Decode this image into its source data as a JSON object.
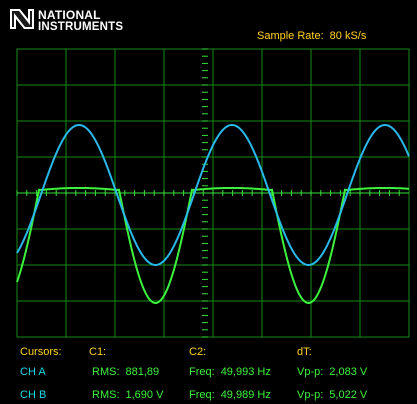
{
  "brand": {
    "line1": "NATIONAL",
    "line2": "INSTRUMENTS",
    "mark": "eagle-logo-icon"
  },
  "sample_rate": {
    "label": "Sample Rate:",
    "value": "80 kS/s"
  },
  "colors": {
    "background": "#000000",
    "grid": "#148c14",
    "axis": "#39e239",
    "ch_a": "#2ab8ea",
    "ch_b": "#3cf23c",
    "label_yellow": "#ffd21e",
    "label_teal": "#19d8e6",
    "value_green": "#3cf23c"
  },
  "readout": {
    "headers": {
      "cursors": "Cursors:",
      "c1": "C1:",
      "c2": "C2:",
      "dt": "dT:"
    },
    "rows": [
      {
        "channel": "CH A",
        "c1_label": "RMS:",
        "c1_value": "881,89",
        "c2_label": "Freq:",
        "c2_value": "49,993 Hz",
        "dt_label": "Vp-p:",
        "dt_value": "2,083 V"
      },
      {
        "channel": "CH B",
        "c1_label": "RMS:",
        "c1_value": "1,690 V",
        "c2_label": "Freq:",
        "c2_value": "49,989 Hz",
        "dt_label": "Vp-p:",
        "dt_value": "5,022 V"
      }
    ]
  },
  "chart_data": {
    "type": "line",
    "grid": true,
    "series": [
      {
        "name": "CH A"
      },
      {
        "name": "CH B"
      }
    ]
  }
}
